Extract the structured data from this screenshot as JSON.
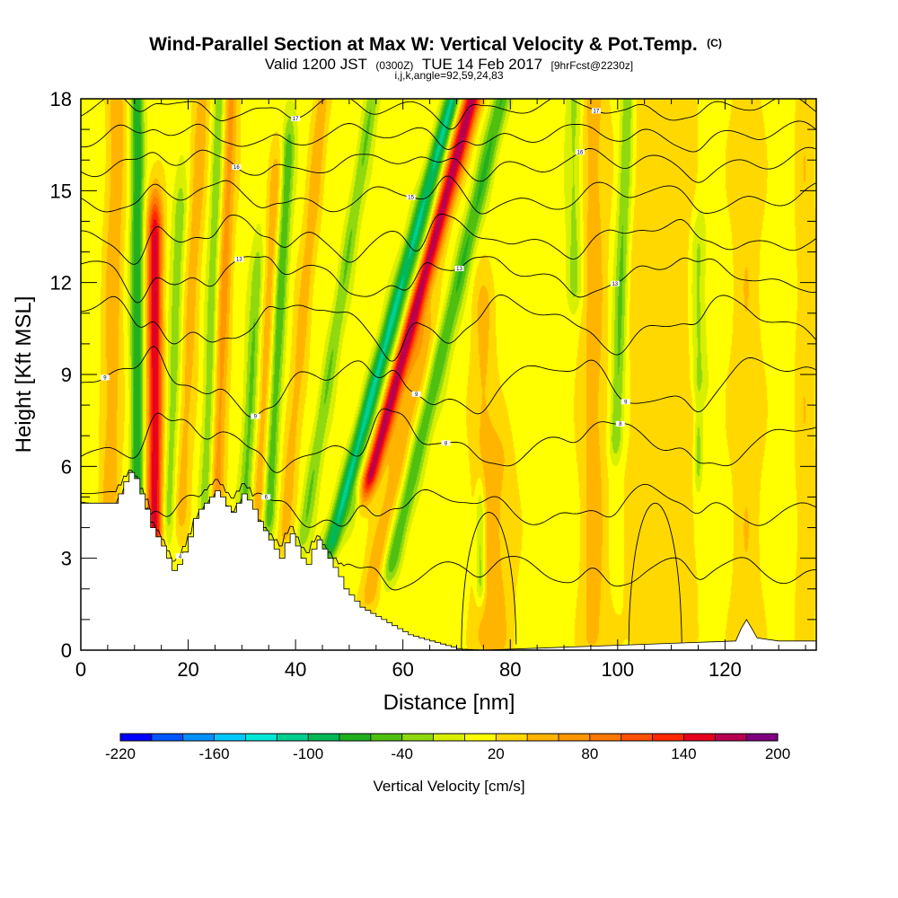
{
  "title": {
    "main": "Wind-Parallel Section at Max W: Vertical Velocity & Pot.Temp.",
    "copyright": "(C)",
    "valid_prefix": "Valid 1200 JST",
    "valid_utc": "(0300Z)",
    "valid_date": "TUE 14 Feb 2017",
    "forecast": "[9hrFcst@2230z]",
    "indices": "i,j,k,angle=92,59,24,83"
  },
  "chart_data": {
    "type": "heatmap",
    "xlabel": "Distance [nm]",
    "ylabel": "Height [Kft MSL]",
    "xlim": [
      0,
      137
    ],
    "ylim": [
      0,
      18
    ],
    "xticks": [
      "0",
      "20",
      "40",
      "60",
      "80",
      "100",
      "120"
    ],
    "yticks": [
      "0",
      "3",
      "6",
      "9",
      "12",
      "15",
      "18"
    ],
    "background_value": 10,
    "updrafts": [
      {
        "x": 13.8,
        "value": 150,
        "width": 1.4,
        "lean": 0.0,
        "zbottom": 4.0,
        "ztop": 13.5
      },
      {
        "x": 5.5,
        "value": 45,
        "width": 1.8,
        "lean": 0.1,
        "zbottom": 5.0,
        "ztop": 18
      },
      {
        "x": 19,
        "value": 40,
        "width": 1.6,
        "lean": 0.3,
        "zbottom": 4.6,
        "ztop": 18
      },
      {
        "x": 25.5,
        "value": 60,
        "width": 1.4,
        "lean": 0.2,
        "zbottom": 5.0,
        "ztop": 18
      },
      {
        "x": 33.5,
        "value": 45,
        "width": 1.4,
        "lean": 0.3,
        "zbottom": 4.8,
        "ztop": 15
      },
      {
        "x": 39,
        "value": 40,
        "width": 1.5,
        "lean": 0.5,
        "zbottom": 4.0,
        "ztop": 18
      },
      {
        "x": 54.3,
        "value": 165,
        "width": 1.7,
        "lean": 1.55,
        "zbottom": 5.8,
        "ztop": 18
      },
      {
        "x": 59,
        "value": 45,
        "width": 2.0,
        "lean": 1.2,
        "zbottom": 2.0,
        "ztop": 10
      },
      {
        "x": 75,
        "value": 35,
        "width": 2.2,
        "lean": 0.0,
        "zbottom": 0.5,
        "ztop": 11
      },
      {
        "x": 78,
        "value": 30,
        "width": 3.0,
        "lean": 0.0,
        "zbottom": 0.5,
        "ztop": 6
      },
      {
        "x": 95.5,
        "value": 40,
        "width": 2.5,
        "lean": 0.0,
        "zbottom": 0.5,
        "ztop": 18
      },
      {
        "x": 105,
        "value": 25,
        "width": 4.0,
        "lean": 0.0,
        "zbottom": 0.5,
        "ztop": 18
      },
      {
        "x": 112,
        "value": 25,
        "width": 3.0,
        "lean": 0.0,
        "zbottom": 0.5,
        "ztop": 18
      },
      {
        "x": 124,
        "value": 25,
        "width": 3.0,
        "lean": 0.0,
        "zbottom": 0.5,
        "ztop": 18
      },
      {
        "x": 135,
        "value": 25,
        "width": 2.0,
        "lean": 0.0,
        "zbottom": 0.5,
        "ztop": 18
      }
    ],
    "downdrafts": [
      {
        "x": 10.5,
        "value": -90,
        "width": 1.2,
        "lean": 0.0,
        "zbottom": 4.5,
        "ztop": 18
      },
      {
        "x": 16.8,
        "value": -45,
        "width": 1.3,
        "lean": 0.2,
        "zbottom": 4.5,
        "ztop": 14
      },
      {
        "x": 23.5,
        "value": -50,
        "width": 1.2,
        "lean": 0.2,
        "zbottom": 5.0,
        "ztop": 18
      },
      {
        "x": 31,
        "value": -55,
        "width": 1.3,
        "lean": 0.3,
        "zbottom": 4.5,
        "ztop": 12
      },
      {
        "x": 35.5,
        "value": -70,
        "width": 1.2,
        "lean": 0.3,
        "zbottom": 4.5,
        "ztop": 16
      },
      {
        "x": 43.5,
        "value": -50,
        "width": 1.3,
        "lean": 0.9,
        "zbottom": 4.0,
        "ztop": 18
      },
      {
        "x": 50.6,
        "value": -115,
        "width": 1.5,
        "lean": 1.55,
        "zbottom": 3.7,
        "ztop": 18
      },
      {
        "x": 53,
        "value": -45,
        "width": 1.0,
        "lean": 1.5,
        "zbottom": 5.0,
        "ztop": 14
      },
      {
        "x": 62.2,
        "value": -70,
        "width": 1.6,
        "lean": 1.35,
        "zbottom": 3.0,
        "ztop": 18
      },
      {
        "x": 74.5,
        "value": -75,
        "width": 1.0,
        "lean": 0.0,
        "zbottom": 2.3,
        "ztop": 4.2
      },
      {
        "x": 99.5,
        "value": -60,
        "width": 1.3,
        "lean": 0.2,
        "zbottom": 7.0,
        "ztop": 18
      },
      {
        "x": 92,
        "value": -40,
        "width": 1.5,
        "lean": 0.0,
        "zbottom": 12.0,
        "ztop": 18
      },
      {
        "x": 115,
        "value": -40,
        "width": 1.5,
        "lean": 0.0,
        "zbottom": 9.0,
        "ztop": 13
      },
      {
        "x": 115,
        "value": -45,
        "width": 0.8,
        "lean": 0.0,
        "zbottom": 6.0,
        "ztop": 6.7
      }
    ],
    "terrain": {
      "x": [
        0,
        7,
        7,
        8,
        8,
        9,
        9,
        10,
        10,
        11,
        11,
        12,
        12,
        13,
        13,
        14,
        14,
        15,
        15,
        16,
        16,
        17,
        17,
        18,
        18,
        19,
        19,
        20,
        20,
        21,
        21,
        22,
        22,
        23,
        23,
        24,
        24,
        25,
        25,
        26,
        26,
        27,
        27,
        28,
        28,
        29,
        29,
        30,
        30,
        31,
        31,
        32,
        32,
        33,
        33,
        34,
        34,
        35,
        35,
        36,
        36,
        37,
        37,
        38,
        38,
        39,
        39,
        40,
        40,
        41,
        41,
        42,
        42,
        43,
        43,
        44,
        44,
        45,
        45,
        46,
        46,
        47,
        47,
        48,
        48,
        49,
        49,
        50,
        50,
        51,
        51,
        52,
        52,
        53,
        53,
        54,
        54,
        55,
        55,
        56,
        56,
        57,
        57,
        58,
        58,
        59,
        59,
        60,
        60,
        61,
        61,
        62,
        62,
        63,
        63,
        64,
        64,
        65,
        65,
        66,
        66,
        67,
        67,
        68,
        68,
        69,
        69,
        70,
        70,
        71,
        71,
        72,
        72,
        73,
        73,
        74,
        74,
        75,
        75,
        122,
        122,
        123,
        123,
        124,
        124,
        125,
        125,
        126,
        126,
        130,
        130,
        137
      ],
      "z": [
        4.8,
        4.8,
        5.1,
        5.1,
        5.5,
        5.5,
        5.8,
        5.8,
        5.6,
        5.6,
        5.1,
        5.1,
        4.6,
        4.6,
        4.0,
        4.0,
        3.7,
        3.7,
        3.4,
        3.4,
        3.0,
        3.0,
        2.6,
        2.6,
        2.8,
        2.8,
        3.2,
        3.2,
        3.7,
        3.7,
        4.3,
        4.3,
        4.6,
        4.6,
        4.8,
        4.8,
        5.0,
        5.0,
        5.2,
        5.2,
        5.0,
        5.0,
        4.7,
        4.7,
        4.5,
        4.5,
        4.8,
        4.8,
        5.1,
        5.1,
        4.9,
        4.9,
        4.6,
        4.6,
        4.2,
        4.2,
        3.9,
        3.9,
        3.6,
        3.6,
        3.3,
        3.3,
        3.0,
        3.0,
        3.5,
        3.5,
        3.8,
        3.8,
        3.4,
        3.4,
        3.0,
        3.0,
        2.8,
        2.8,
        3.3,
        3.3,
        3.6,
        3.6,
        3.3,
        3.3,
        3.0,
        3.0,
        2.7,
        2.7,
        2.4,
        2.4,
        2.0,
        2.0,
        1.8,
        1.8,
        1.6,
        1.6,
        1.4,
        1.4,
        1.3,
        1.3,
        1.2,
        1.2,
        1.1,
        1.1,
        1.0,
        1.0,
        0.9,
        0.9,
        0.8,
        0.8,
        0.7,
        0.7,
        0.6,
        0.6,
        0.5,
        0.5,
        0.45,
        0.45,
        0.4,
        0.4,
        0.35,
        0.35,
        0.3,
        0.3,
        0.25,
        0.25,
        0.2,
        0.2,
        0.15,
        0.15,
        0.1,
        0.1,
        0.05,
        0.05,
        0.03,
        0.03,
        0.02,
        0.02,
        0.01,
        0.01,
        0.0,
        0.0,
        0.0,
        0.3,
        0.3,
        0.7,
        0.7,
        1.0,
        1.0,
        0.7,
        0.7,
        0.4,
        0.4,
        0.3,
        0.3,
        0.3
      ]
    },
    "isentrope_base_heights": [
      2.6,
      4.7,
      6.8,
      8.7,
      10.7,
      12.3,
      13.5,
      14.8,
      15.9,
      16.8,
      17.7
    ],
    "isentrope_labels": [
      {
        "level": 0,
        "x": 18.5,
        "text": "4"
      },
      {
        "level": 1,
        "x": 34.5,
        "text": "6"
      },
      {
        "level": 2,
        "x": 68,
        "text": "8"
      },
      {
        "level": 2,
        "x": 100.5,
        "text": "8"
      },
      {
        "level": 3,
        "x": 4.5,
        "text": "9"
      },
      {
        "level": 3,
        "x": 32.5,
        "text": "9"
      },
      {
        "level": 3,
        "x": 62.5,
        "text": "9"
      },
      {
        "level": 3,
        "x": 101.5,
        "text": "9"
      },
      {
        "level": 5,
        "x": 29.5,
        "text": "13"
      },
      {
        "level": 5,
        "x": 70.5,
        "text": "13"
      },
      {
        "level": 5,
        "x": 99.5,
        "text": "13"
      },
      {
        "level": 7,
        "x": 61.5,
        "text": "15"
      },
      {
        "level": 8,
        "x": 29,
        "text": "16"
      },
      {
        "level": 8,
        "x": 93,
        "text": "16"
      },
      {
        "level": 10,
        "x": 40,
        "text": "17"
      },
      {
        "level": 10,
        "x": 96,
        "text": "17"
      }
    ],
    "colorbar": {
      "label": "Vertical Velocity [cm/s]",
      "min": -220,
      "max": 200,
      "step": 20,
      "tick_labels": [
        "-220",
        "-160",
        "-100",
        "-40",
        "20",
        "80",
        "140",
        "200"
      ],
      "colors": [
        "#0000ff",
        "#0055ff",
        "#0090ff",
        "#00c8ff",
        "#00e8d8",
        "#00d090",
        "#00b858",
        "#20b020",
        "#50c010",
        "#90d810",
        "#d8f000",
        "#ffff00",
        "#ffd800",
        "#ffb400",
        "#ff9600",
        "#ff7800",
        "#ff5000",
        "#ff2800",
        "#e8001e",
        "#b80050",
        "#800080"
      ]
    }
  }
}
